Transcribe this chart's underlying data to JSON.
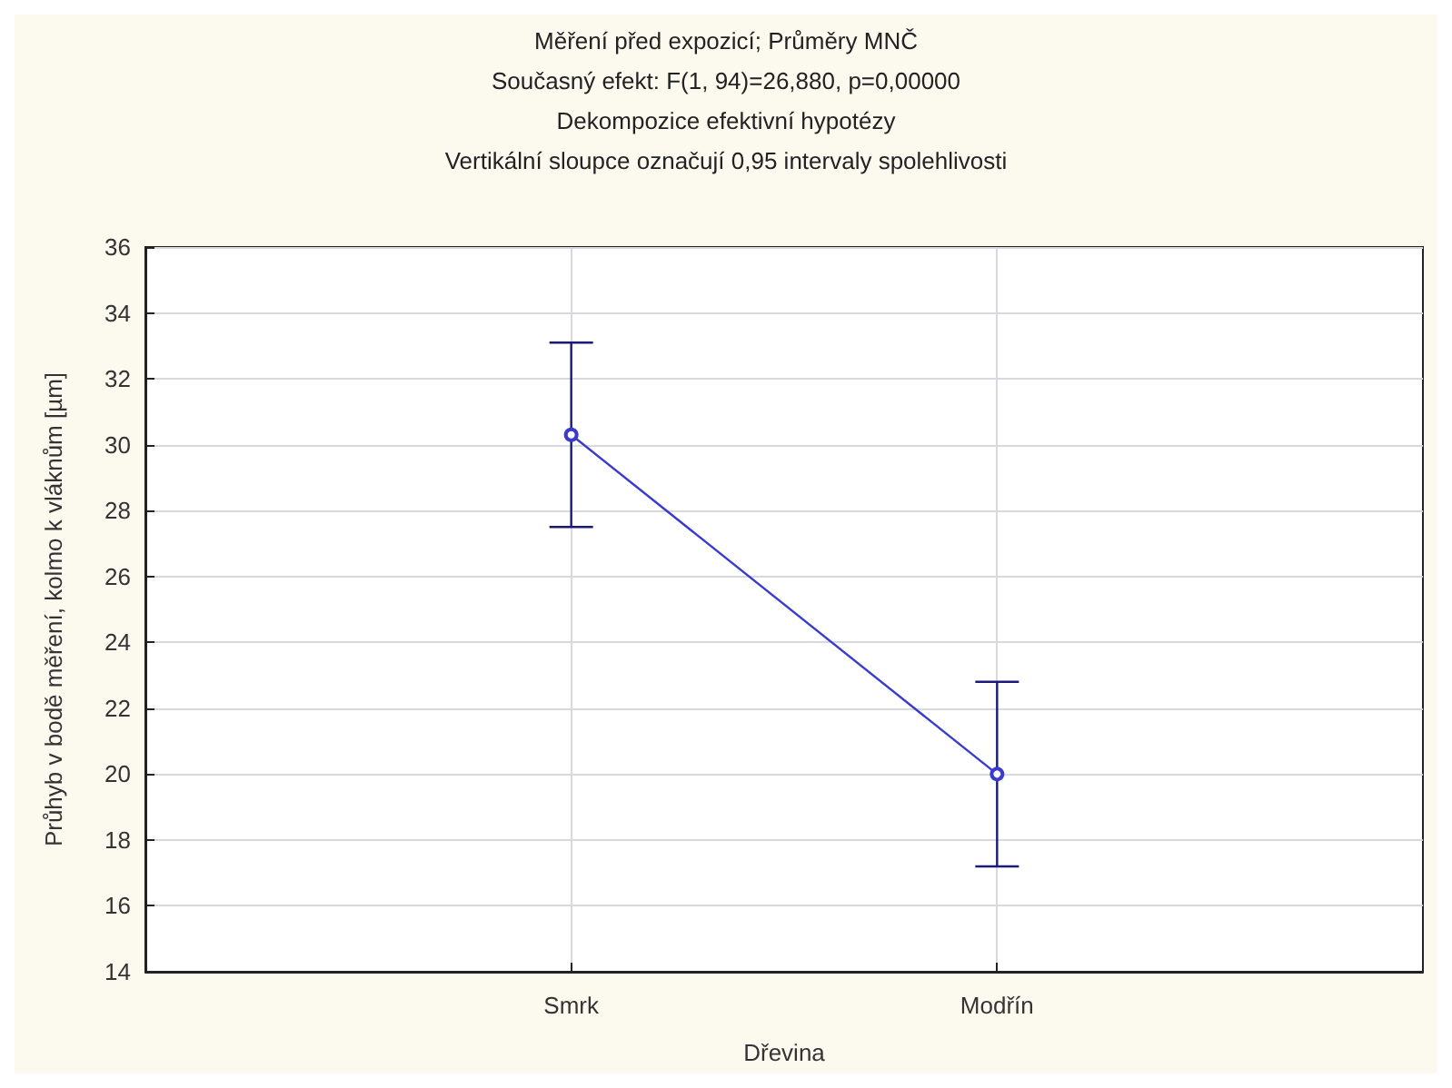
{
  "chart_data": {
    "type": "line",
    "title": "Měření před expozicí; Průměry MNČ",
    "subtitle": "Současný efekt: F(1, 94)=26,880, p=0,00000",
    "annotations": [
      "Dekompozice efektivní hypotézy",
      "Vertikální sloupce označují 0,95 intervaly spolehlivosti"
    ],
    "xlabel": "Dřevina",
    "ylabel": "Průhyb v bodě měření, kolmo k vláknům [µm]",
    "categories": [
      "Smrk",
      "Modřín"
    ],
    "series": [
      {
        "color": "#3a3ad0",
        "values": [
          30.3,
          20.0
        ],
        "errors": [
          [
            27.5,
            33.1
          ],
          [
            17.2,
            22.8
          ]
        ]
      }
    ],
    "ylim": [
      14,
      36
    ],
    "yticks": [
      14,
      16,
      18,
      20,
      22,
      24,
      26,
      28,
      30,
      32,
      34,
      36
    ],
    "grid": true,
    "marker": "circle",
    "line_style": "solid"
  }
}
